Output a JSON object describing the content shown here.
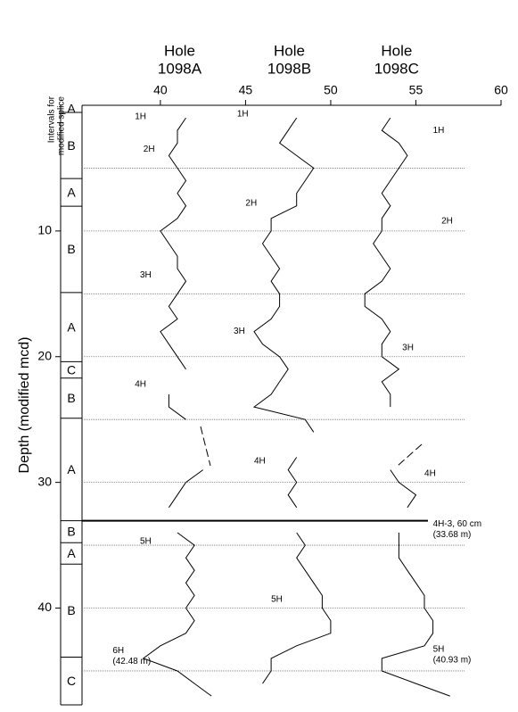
{
  "chart_data": {
    "type": "line",
    "y_label": "Depth (modified mcd)",
    "splice_label": [
      "Intervals for",
      "modified splice"
    ],
    "hole_label": "Hole",
    "xlim": [
      35.4,
      60
    ],
    "xticks": [
      40,
      45,
      50,
      55,
      60
    ],
    "ylim": [
      0,
      47.7
    ],
    "yticks": [
      10,
      20,
      30,
      40
    ],
    "ygrid": [
      5,
      10,
      15,
      20,
      25,
      30,
      35,
      40,
      45
    ],
    "tie_depth": 33.05,
    "color": "#000000",
    "depth": [
      0,
      1,
      2,
      3,
      4,
      5,
      6,
      7,
      8,
      9,
      10,
      11,
      12,
      13,
      14,
      15,
      16,
      17,
      18,
      19,
      20,
      21,
      22,
      23,
      24,
      25,
      26,
      27,
      28,
      29,
      30,
      31,
      32,
      33,
      34,
      35,
      36,
      37,
      38,
      39,
      40,
      41,
      42,
      43,
      44,
      45,
      46,
      47
    ],
    "series": [
      {
        "name": "1098A",
        "values": [
          null,
          41.5,
          41,
          41,
          40.5,
          41,
          41.5,
          41,
          41.5,
          41,
          40,
          40.5,
          41,
          41,
          41.5,
          41,
          40.5,
          41,
          40,
          40.5,
          41,
          41.5,
          null,
          40.5,
          40.5,
          41.5,
          null,
          null,
          null,
          42.5,
          41.5,
          41,
          40.5,
          null,
          41,
          42,
          41.5,
          42,
          41.5,
          42,
          41.5,
          42,
          41.5,
          40,
          39,
          41,
          42,
          43
        ]
      },
      {
        "name": "1098B",
        "values": [
          null,
          48,
          47.5,
          47,
          48,
          49,
          48.5,
          48,
          48,
          46.5,
          46.5,
          46,
          46.5,
          47,
          46.5,
          47,
          47,
          46.5,
          45.5,
          46,
          47,
          47.5,
          47,
          46.5,
          45.5,
          48.5,
          49,
          null,
          48,
          47.5,
          48,
          47.5,
          48,
          null,
          48,
          48.5,
          48,
          48.5,
          49,
          49.5,
          49.5,
          50,
          50,
          48,
          46.5,
          46.5,
          46,
          null
        ]
      },
      {
        "name": "1098C",
        "values": [
          null,
          53.5,
          53,
          54,
          54.5,
          54,
          53.5,
          53,
          53.5,
          53,
          53,
          52.5,
          53,
          53.5,
          53,
          52,
          52,
          53,
          53.5,
          53,
          53,
          54,
          53,
          53.5,
          53.5,
          null,
          null,
          null,
          null,
          53.5,
          54,
          55,
          54.5,
          null,
          54,
          54,
          54,
          54.5,
          55,
          55.5,
          55.5,
          56,
          56,
          55.5,
          53,
          53,
          55,
          57
        ]
      }
    ],
    "intervals": [
      {
        "label": "A",
        "top": 0,
        "bottom": 0.57
      },
      {
        "label": "B",
        "top": 0.57,
        "bottom": 5.83
      },
      {
        "label": "A",
        "top": 5.83,
        "bottom": 8.03
      },
      {
        "label": "B",
        "top": 8.03,
        "bottom": 14.9
      },
      {
        "label": "A",
        "top": 14.9,
        "bottom": 20.4
      },
      {
        "label": "C",
        "top": 20.4,
        "bottom": 21.7
      },
      {
        "label": "B",
        "top": 21.7,
        "bottom": 24.9
      },
      {
        "label": "A",
        "top": 24.9,
        "bottom": 33.05
      },
      {
        "label": "B",
        "top": 33.05,
        "bottom": 34.8
      },
      {
        "label": "A",
        "top": 34.8,
        "bottom": 36.5
      },
      {
        "label": "B",
        "top": 36.5,
        "bottom": 43.9
      },
      {
        "label": "C",
        "top": 43.9,
        "bottom": 47.7
      }
    ],
    "annotations": [
      {
        "text": [
          "1H"
        ],
        "x": 38.5,
        "y": 0.9
      },
      {
        "text": [
          "2H"
        ],
        "x": 39,
        "y": 3.5
      },
      {
        "text": [
          "3H"
        ],
        "x": 38.8,
        "y": 13.5
      },
      {
        "text": [
          "4H"
        ],
        "x": 38.5,
        "y": 22.2
      },
      {
        "text": [
          "5H"
        ],
        "x": 38.8,
        "y": 34.7
      },
      {
        "text": [
          "6H",
          "(42.48 m)"
        ],
        "x": 37.2,
        "y": 43.4
      },
      {
        "text": [
          "1H"
        ],
        "x": 44.5,
        "y": 0.7
      },
      {
        "text": [
          "2H"
        ],
        "x": 45,
        "y": 7.8
      },
      {
        "text": [
          "3H"
        ],
        "x": 44.3,
        "y": 18
      },
      {
        "text": [
          "4H"
        ],
        "x": 45.5,
        "y": 28.3
      },
      {
        "text": [
          "5H"
        ],
        "x": 46.5,
        "y": 39.3
      },
      {
        "text": [
          "1H"
        ],
        "x": 56,
        "y": 2
      },
      {
        "text": [
          "2H"
        ],
        "x": 56.5,
        "y": 9.2
      },
      {
        "text": [
          "3H"
        ],
        "x": 54.2,
        "y": 19.3
      },
      {
        "text": [
          "4H"
        ],
        "x": 55.5,
        "y": 29.3
      },
      {
        "text": [
          "4H-3, 60 cm",
          "(33.68 m)"
        ],
        "x": 56,
        "y": 33.3
      },
      {
        "text": [
          "5H",
          "(40.93 m)"
        ],
        "x": 56,
        "y": 43.3
      }
    ]
  }
}
